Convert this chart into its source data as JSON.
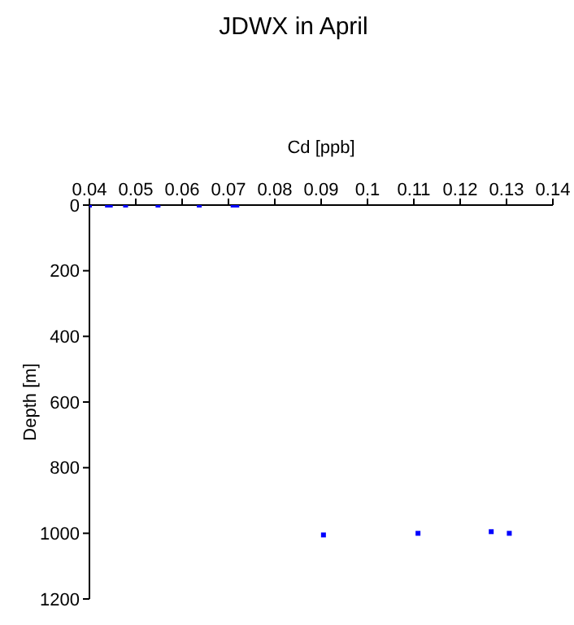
{
  "chart_data": {
    "type": "scatter",
    "title": "JDWX in April",
    "xlabel": "Cd [ppb]",
    "ylabel": "Depth [m]",
    "x": [
      0.04,
      0.0439,
      0.0445,
      0.0478,
      0.0548,
      0.0637,
      0.071,
      0.0718,
      0.0905,
      0.1109,
      0.1267,
      0.1306
    ],
    "series": [
      {
        "color": "#0000ff",
        "values": [
          0,
          0,
          0,
          0,
          0,
          0,
          0,
          0,
          1005,
          1000,
          995,
          1000
        ]
      }
    ],
    "xlim": [
      0.04,
      0.14
    ],
    "xticks": [
      0.04,
      0.05,
      0.06,
      0.07,
      0.08,
      0.09,
      0.1,
      0.11,
      0.12,
      0.13,
      0.14
    ],
    "ylim": [
      1200,
      0
    ],
    "yticks": [
      0,
      200,
      400,
      600,
      800,
      1000,
      1200
    ],
    "marker": "square",
    "grid": false,
    "legend": false
  }
}
